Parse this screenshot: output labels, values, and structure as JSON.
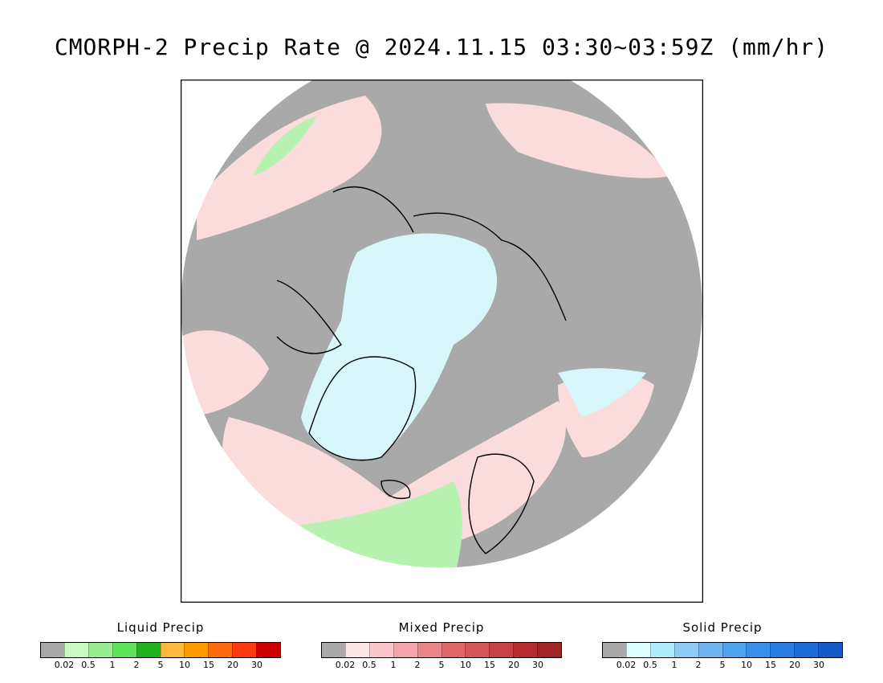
{
  "title": "CMORPH-2 Precip Rate @ 2024.11.15 03:30~03:59Z (mm/hr)",
  "legends": [
    {
      "title": "Liquid Precip",
      "colors": [
        "#a9a9a9",
        "#c8fbc0",
        "#98ee90",
        "#5ee35a",
        "#22b022",
        "#fbba3f",
        "#fb9b00",
        "#fb6a10",
        "#fb3a10",
        "#cd0000"
      ],
      "ticks": [
        "0.02",
        "0.5",
        "1",
        "2",
        "5",
        "10",
        "15",
        "20",
        "30"
      ]
    },
    {
      "title": "Mixed Precip",
      "colors": [
        "#a9a9a9",
        "#fde6e8",
        "#fbc7cb",
        "#f4a5ab",
        "#ea8689",
        "#e0686b",
        "#d45759",
        "#c84244",
        "#b52b2c",
        "#a02426"
      ],
      "ticks": [
        "0.02",
        "0.5",
        "1",
        "2",
        "5",
        "10",
        "15",
        "20",
        "30"
      ]
    },
    {
      "title": "Solid Precip",
      "colors": [
        "#a9a9a9",
        "#dbffff",
        "#b0edfb",
        "#8ecbf6",
        "#70b6f1",
        "#52a3ee",
        "#3a8fe9",
        "#2a7ce0",
        "#1e6ad9",
        "#1559c7"
      ],
      "ticks": [
        "0.02",
        "0.5",
        "1",
        "2",
        "5",
        "10",
        "15",
        "20",
        "30"
      ]
    }
  ],
  "map_colors": {
    "no_precip": "#a9a9a9",
    "solid_light": "#d8f7fb",
    "mixed_light": "#fbdcdc",
    "liquid_light": "#b8f2b0",
    "outside": "#ffffff",
    "coast": "#000000"
  }
}
